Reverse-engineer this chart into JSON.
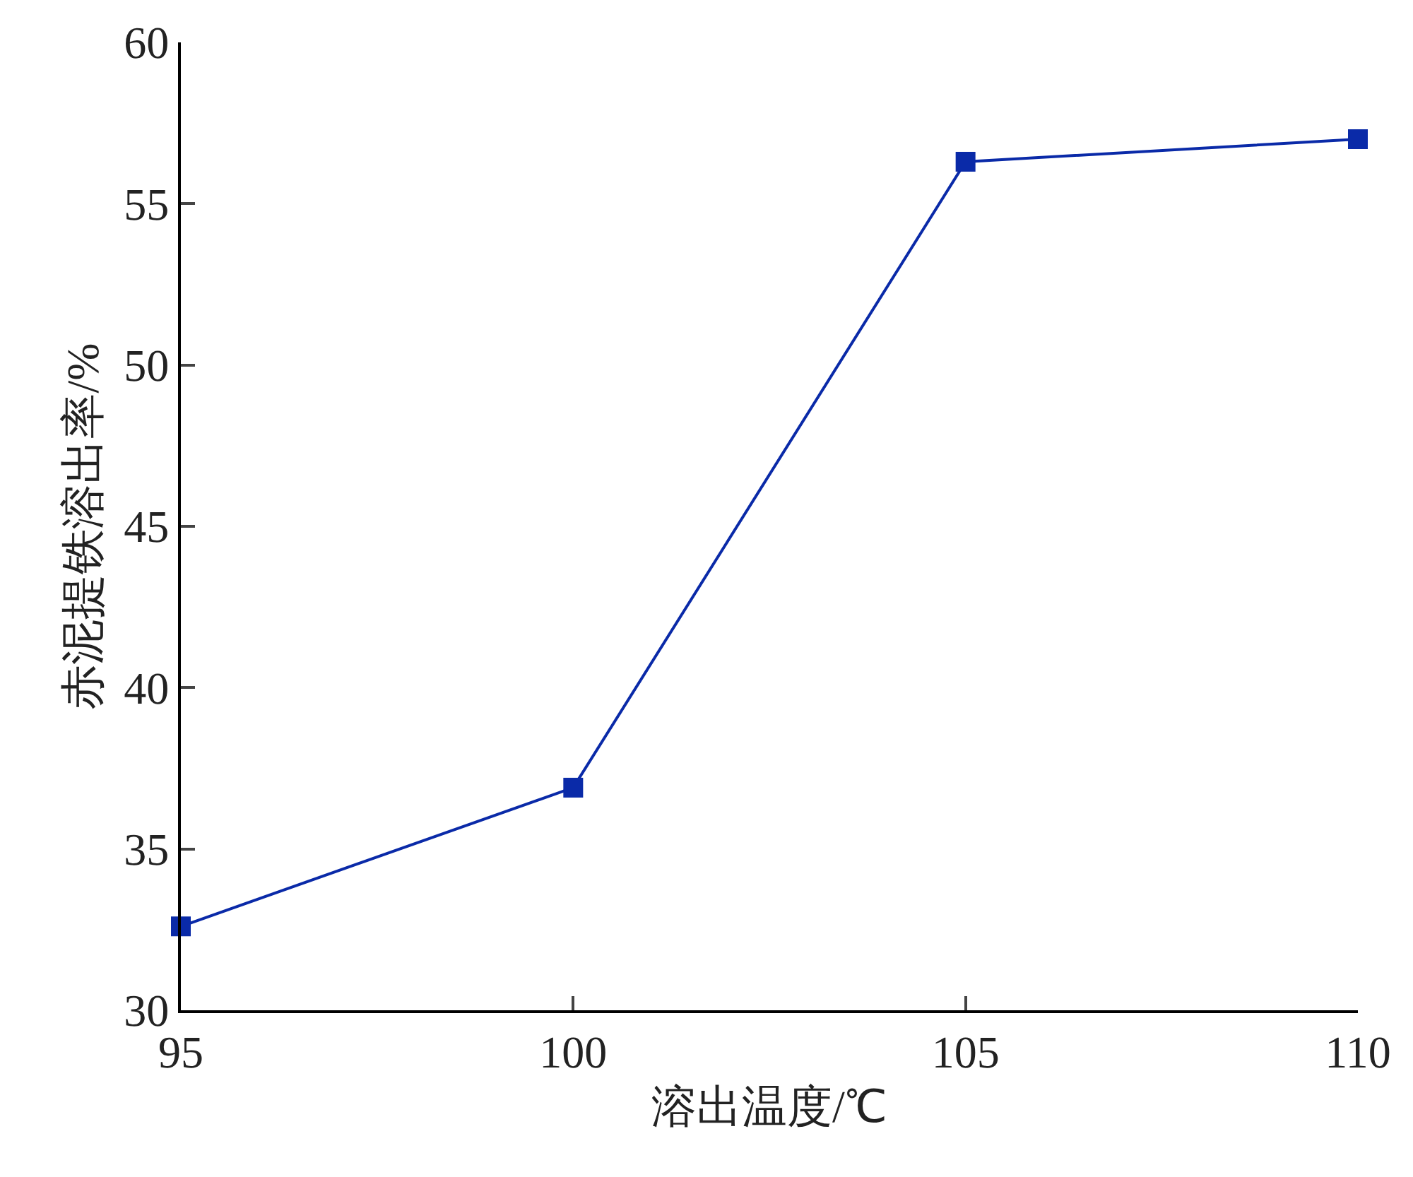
{
  "chart_data": {
    "type": "line",
    "xlabel": "溶出温度/℃",
    "ylabel": "赤泥提铁溶出率/%",
    "x": [
      95,
      100,
      105,
      110
    ],
    "series": [
      {
        "color": "#0a2aa8",
        "values": [
          32.6,
          36.9,
          56.3,
          57.0
        ]
      }
    ],
    "xlim": [
      95,
      110
    ],
    "xticks": [
      95,
      100,
      105,
      110
    ],
    "ylim": [
      30,
      60
    ],
    "yticks": [
      30,
      35,
      40,
      45,
      50,
      55,
      60
    ],
    "marker": "square",
    "line_style": "solid"
  }
}
